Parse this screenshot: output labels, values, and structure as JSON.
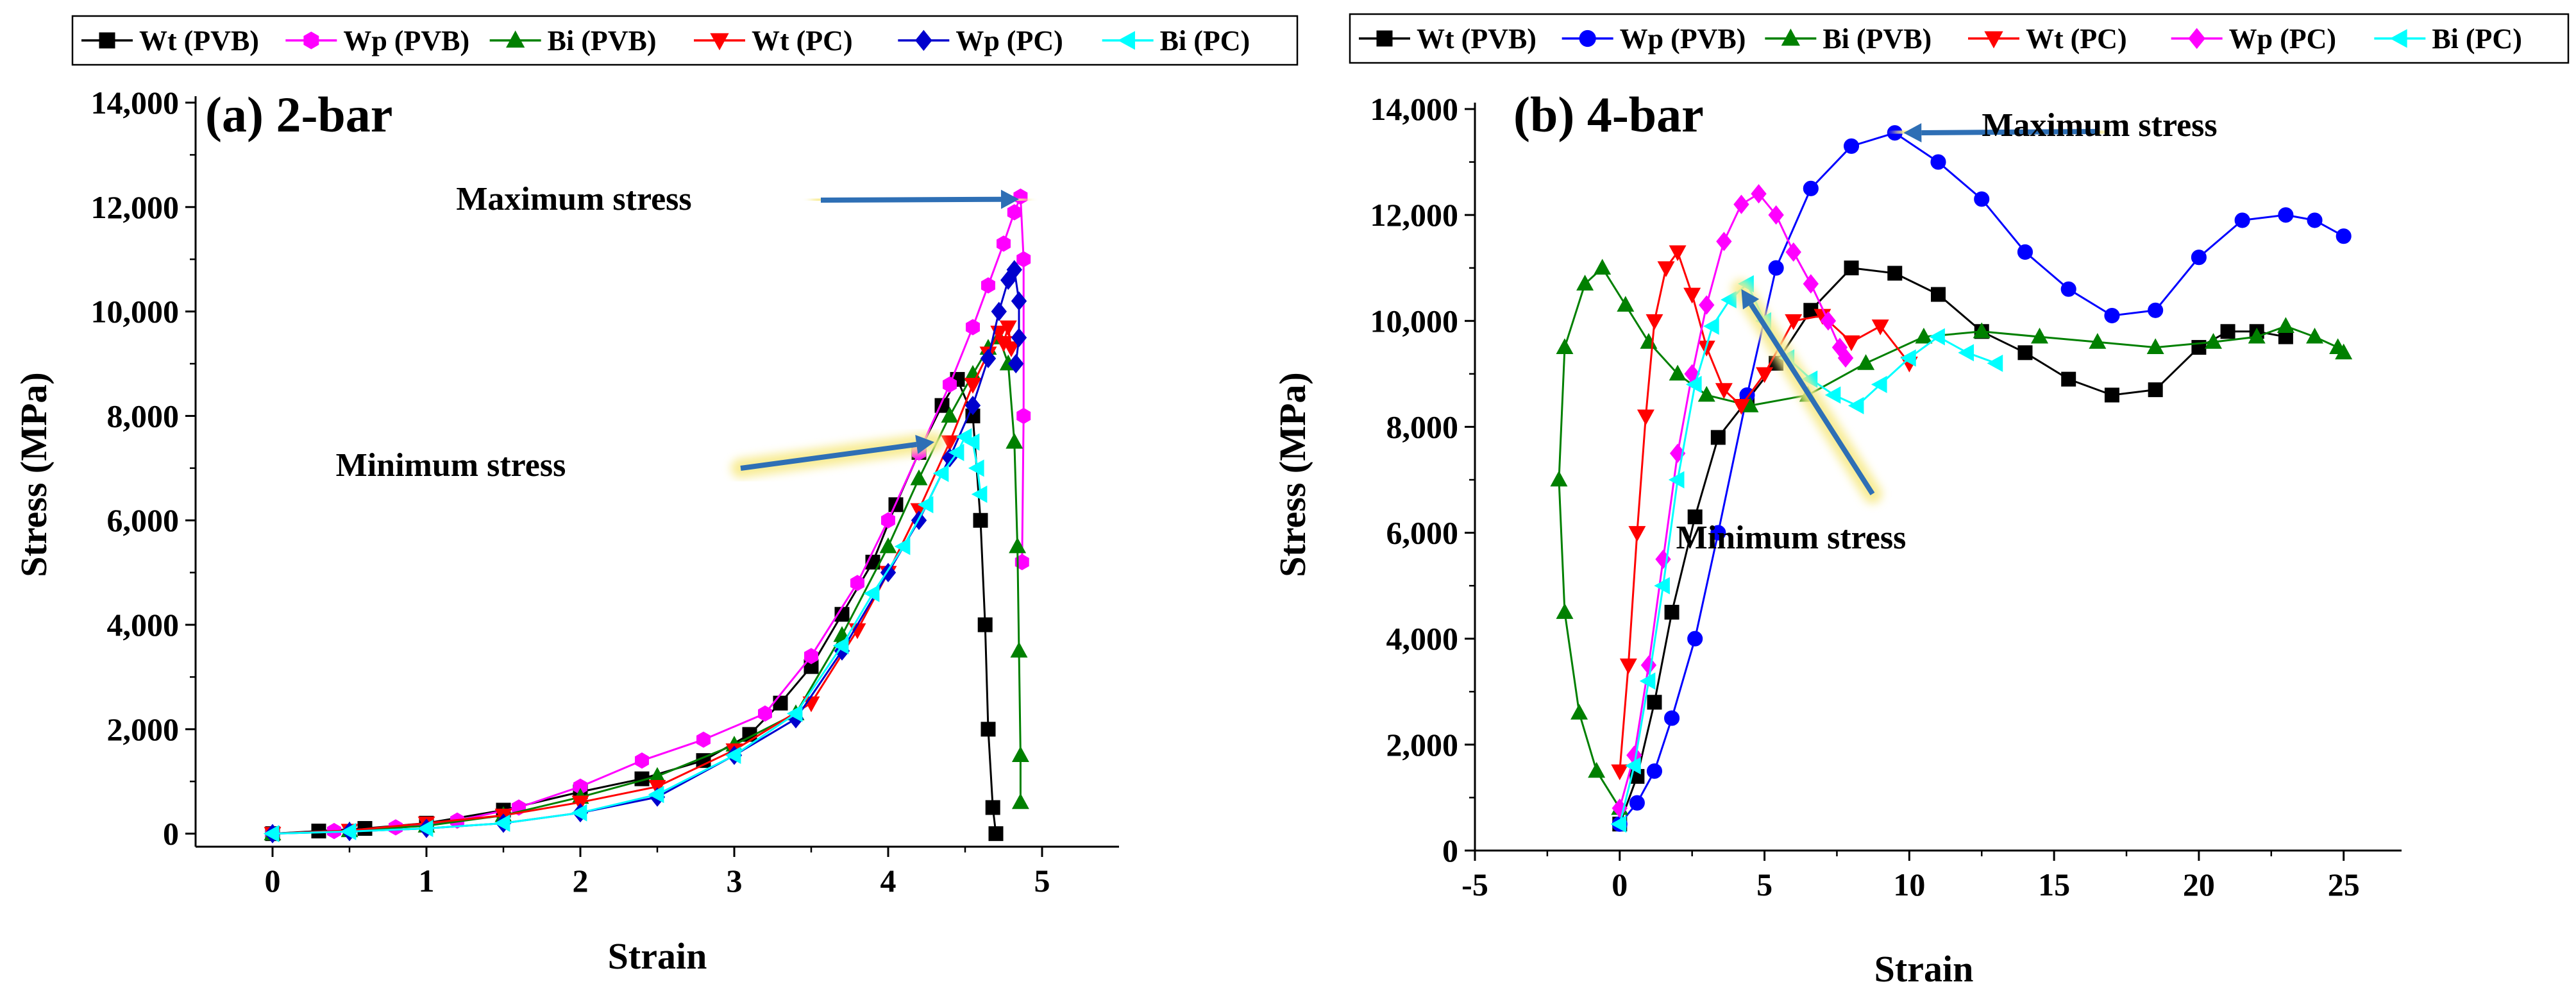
{
  "chart_data": [
    {
      "type": "line",
      "panel_label": "(a) 2-bar",
      "xlabel": "Strain",
      "ylabel": "Stress (MPa)",
      "xlim": [
        -0.5,
        5.5
      ],
      "ylim": [
        -250,
        14000
      ],
      "x_ticks": [
        0,
        1,
        2,
        3,
        4,
        5
      ],
      "x_tick_labels": [
        "0",
        "1",
        "2",
        "3",
        "4",
        "5"
      ],
      "y_ticks": [
        0,
        2000,
        4000,
        6000,
        8000,
        10000,
        12000,
        14000
      ],
      "y_tick_labels": [
        "0",
        "2,000",
        "4,000",
        "6,000",
        "8,000",
        "10,000",
        "12,000",
        "14,000"
      ],
      "grid": false,
      "legend_position": "top",
      "annotations": [
        {
          "text": "Maximum stress",
          "point_to": [
            4.85,
            12150
          ]
        },
        {
          "text": "Minimum stress",
          "point_to": [
            4.3,
            7500
          ]
        }
      ],
      "series": [
        {
          "name": "Wt (PVB)",
          "color": "#000000",
          "marker": "square",
          "x": [
            0.0,
            0.3,
            0.6,
            1.0,
            1.5,
            2.0,
            2.4,
            2.8,
            3.1,
            3.3,
            3.5,
            3.7,
            3.9,
            4.05,
            4.2,
            4.35,
            4.45,
            4.55,
            4.6,
            4.63,
            4.65,
            4.68,
            4.7
          ],
          "y": [
            0,
            50,
            100,
            200,
            450,
            800,
            1050,
            1400,
            1900,
            2500,
            3200,
            4200,
            5200,
            6300,
            7300,
            8200,
            8700,
            8000,
            6000,
            4000,
            2000,
            500,
            0
          ]
        },
        {
          "name": "Wp (PVB)",
          "color": "#ff00ff",
          "marker": "hexagon",
          "x": [
            0.0,
            0.4,
            0.8,
            1.2,
            1.6,
            2.0,
            2.4,
            2.8,
            3.2,
            3.5,
            3.8,
            4.0,
            4.2,
            4.4,
            4.55,
            4.65,
            4.75,
            4.82,
            4.86,
            4.88,
            4.88,
            4.87
          ],
          "y": [
            0,
            50,
            120,
            250,
            500,
            900,
            1400,
            1800,
            2300,
            3400,
            4800,
            6000,
            7300,
            8600,
            9700,
            10500,
            11300,
            11900,
            12200,
            11000,
            8000,
            5200
          ]
        },
        {
          "name": "Bi (PVB)",
          "color": "#008000",
          "marker": "triangle",
          "x": [
            0.0,
            0.5,
            1.0,
            1.5,
            2.0,
            2.5,
            3.0,
            3.4,
            3.7,
            4.0,
            4.2,
            4.4,
            4.55,
            4.65,
            4.72,
            4.78,
            4.82,
            4.84,
            4.85,
            4.86,
            4.86
          ],
          "y": [
            0,
            60,
            150,
            350,
            700,
            1100,
            1700,
            2300,
            3800,
            5500,
            6800,
            8000,
            8800,
            9300,
            9500,
            9000,
            7500,
            5500,
            3500,
            1500,
            600
          ]
        },
        {
          "name": "Wt (PC)",
          "color": "#ff0000",
          "marker": "triangle-down",
          "x": [
            0.0,
            0.5,
            1.0,
            1.5,
            2.0,
            2.5,
            3.0,
            3.5,
            3.8,
            4.0,
            4.2,
            4.4,
            4.55,
            4.65,
            4.72,
            4.75,
            4.78,
            4.8
          ],
          "y": [
            0,
            60,
            200,
            350,
            600,
            900,
            1600,
            2500,
            3900,
            5000,
            6200,
            7500,
            8600,
            9200,
            9600,
            9400,
            9700,
            9300
          ]
        },
        {
          "name": "Wp (PC)",
          "color": "#0000cd",
          "marker": "diamond",
          "x": [
            0.0,
            0.5,
            1.0,
            1.5,
            2.0,
            2.5,
            3.0,
            3.4,
            3.7,
            4.0,
            4.2,
            4.4,
            4.55,
            4.65,
            4.72,
            4.78,
            4.82,
            4.85,
            4.85,
            4.83
          ],
          "y": [
            0,
            40,
            100,
            200,
            400,
            700,
            1500,
            2200,
            3500,
            5000,
            6000,
            7200,
            8200,
            9100,
            10000,
            10600,
            10800,
            10200,
            9500,
            9000
          ]
        },
        {
          "name": "Bi (PC)",
          "color": "#00ffff",
          "marker": "triangle-left",
          "x": [
            0.0,
            0.5,
            1.0,
            1.5,
            2.0,
            2.5,
            3.0,
            3.4,
            3.7,
            3.9,
            4.1,
            4.25,
            4.35,
            4.45,
            4.5,
            4.55,
            4.58,
            4.6
          ],
          "y": [
            0,
            40,
            100,
            200,
            400,
            750,
            1500,
            2300,
            3600,
            4600,
            5500,
            6300,
            6900,
            7300,
            7600,
            7500,
            7000,
            6500
          ]
        }
      ]
    },
    {
      "type": "line",
      "panel_label": "(b) 4-bar",
      "xlabel": "Strain",
      "ylabel": "Stress (MPa)",
      "xlim": [
        -5,
        27
      ],
      "ylim": [
        0,
        14000
      ],
      "x_ticks": [
        -5,
        0,
        5,
        10,
        15,
        20,
        25
      ],
      "x_tick_labels": [
        "-5",
        "0",
        "5",
        "10",
        "15",
        "20",
        "25"
      ],
      "y_ticks": [
        0,
        2000,
        4000,
        6000,
        8000,
        10000,
        12000,
        14000
      ],
      "y_tick_labels": [
        "0",
        "2,000",
        "4,000",
        "6,000",
        "8,000",
        "10,000",
        "12,000",
        "14,000"
      ],
      "grid": false,
      "legend_position": "top",
      "annotations": [
        {
          "text": "Maximum stress",
          "point_to": [
            9.8,
            13550
          ]
        },
        {
          "text": "Minimum stress",
          "point_to": [
            4.2,
            10600
          ]
        }
      ],
      "series": [
        {
          "name": "Wt (PVB)",
          "color": "#000000",
          "marker": "square",
          "x": [
            0.0,
            0.6,
            1.2,
            1.8,
            2.6,
            3.4,
            4.4,
            5.4,
            6.6,
            8.0,
            9.5,
            11.0,
            12.5,
            14.0,
            15.5,
            17.0,
            18.5,
            20.0,
            21.0,
            22.0,
            23.0
          ],
          "y": [
            500,
            1400,
            2800,
            4500,
            6300,
            7800,
            8500,
            9200,
            10200,
            11000,
            10900,
            10500,
            9800,
            9400,
            8900,
            8600,
            8700,
            9500,
            9800,
            9800,
            9700
          ]
        },
        {
          "name": "Wp (PVB)",
          "color": "#0000ff",
          "marker": "circle",
          "x": [
            0.0,
            0.6,
            1.2,
            1.8,
            2.6,
            3.4,
            4.4,
            5.4,
            6.6,
            8.0,
            9.5,
            11.0,
            12.5,
            14.0,
            15.5,
            17.0,
            18.5,
            20.0,
            21.5,
            23.0,
            24.0,
            25.0
          ],
          "y": [
            500,
            900,
            1500,
            2500,
            4000,
            6000,
            8600,
            11000,
            12500,
            13300,
            13550,
            13000,
            12300,
            11300,
            10600,
            10100,
            10200,
            11200,
            11900,
            12000,
            11900,
            11600
          ]
        },
        {
          "name": "Bi (PVB)",
          "color": "#008000",
          "marker": "triangle",
          "x": [
            0.0,
            -0.8,
            -1.4,
            -1.9,
            -2.1,
            -1.9,
            -1.2,
            -0.6,
            0.2,
            1.0,
            2.0,
            3.0,
            4.5,
            6.5,
            8.5,
            10.5,
            12.5,
            14.5,
            16.5,
            18.5,
            20.5,
            22.0,
            23.0,
            24.0,
            24.8,
            25.0
          ],
          "y": [
            800,
            1500,
            2600,
            4500,
            7000,
            9500,
            10700,
            11000,
            10300,
            9600,
            9000,
            8600,
            8400,
            8600,
            9200,
            9700,
            9800,
            9700,
            9600,
            9500,
            9600,
            9700,
            9900,
            9700,
            9500,
            9400
          ]
        },
        {
          "name": "Wt (PC)",
          "color": "#ff0000",
          "marker": "triangle-down",
          "x": [
            0.0,
            0.3,
            0.6,
            0.9,
            1.2,
            1.6,
            2.0,
            2.5,
            3.0,
            3.6,
            4.2,
            5.0,
            6.0,
            7.0,
            8.0,
            9.0,
            10.0
          ],
          "y": [
            1500,
            3500,
            6000,
            8200,
            10000,
            11000,
            11300,
            10500,
            9500,
            8700,
            8400,
            9000,
            10000,
            10100,
            9600,
            9900,
            9200
          ]
        },
        {
          "name": "Wp (PC)",
          "color": "#ff00ff",
          "marker": "diamond",
          "x": [
            0.0,
            0.5,
            1.0,
            1.5,
            2.0,
            2.5,
            3.0,
            3.6,
            4.2,
            4.8,
            5.4,
            6.0,
            6.6,
            7.2,
            7.6,
            7.8
          ],
          "y": [
            800,
            1800,
            3500,
            5500,
            7500,
            9000,
            10300,
            11500,
            12200,
            12400,
            12000,
            11300,
            10700,
            10000,
            9500,
            9300
          ]
        },
        {
          "name": "Bi (PC)",
          "color": "#00ffff",
          "marker": "triangle-left",
          "x": [
            0.0,
            0.5,
            1.0,
            1.5,
            2.0,
            2.6,
            3.2,
            3.8,
            4.4,
            5.0,
            5.8,
            6.6,
            7.4,
            8.2,
            9.0,
            10.0,
            11.0,
            12.0,
            13.0
          ],
          "y": [
            500,
            1600,
            3200,
            5000,
            7000,
            8800,
            9900,
            10400,
            10700,
            10000,
            9300,
            8900,
            8600,
            8400,
            8800,
            9300,
            9700,
            9400,
            9200
          ]
        }
      ]
    }
  ]
}
